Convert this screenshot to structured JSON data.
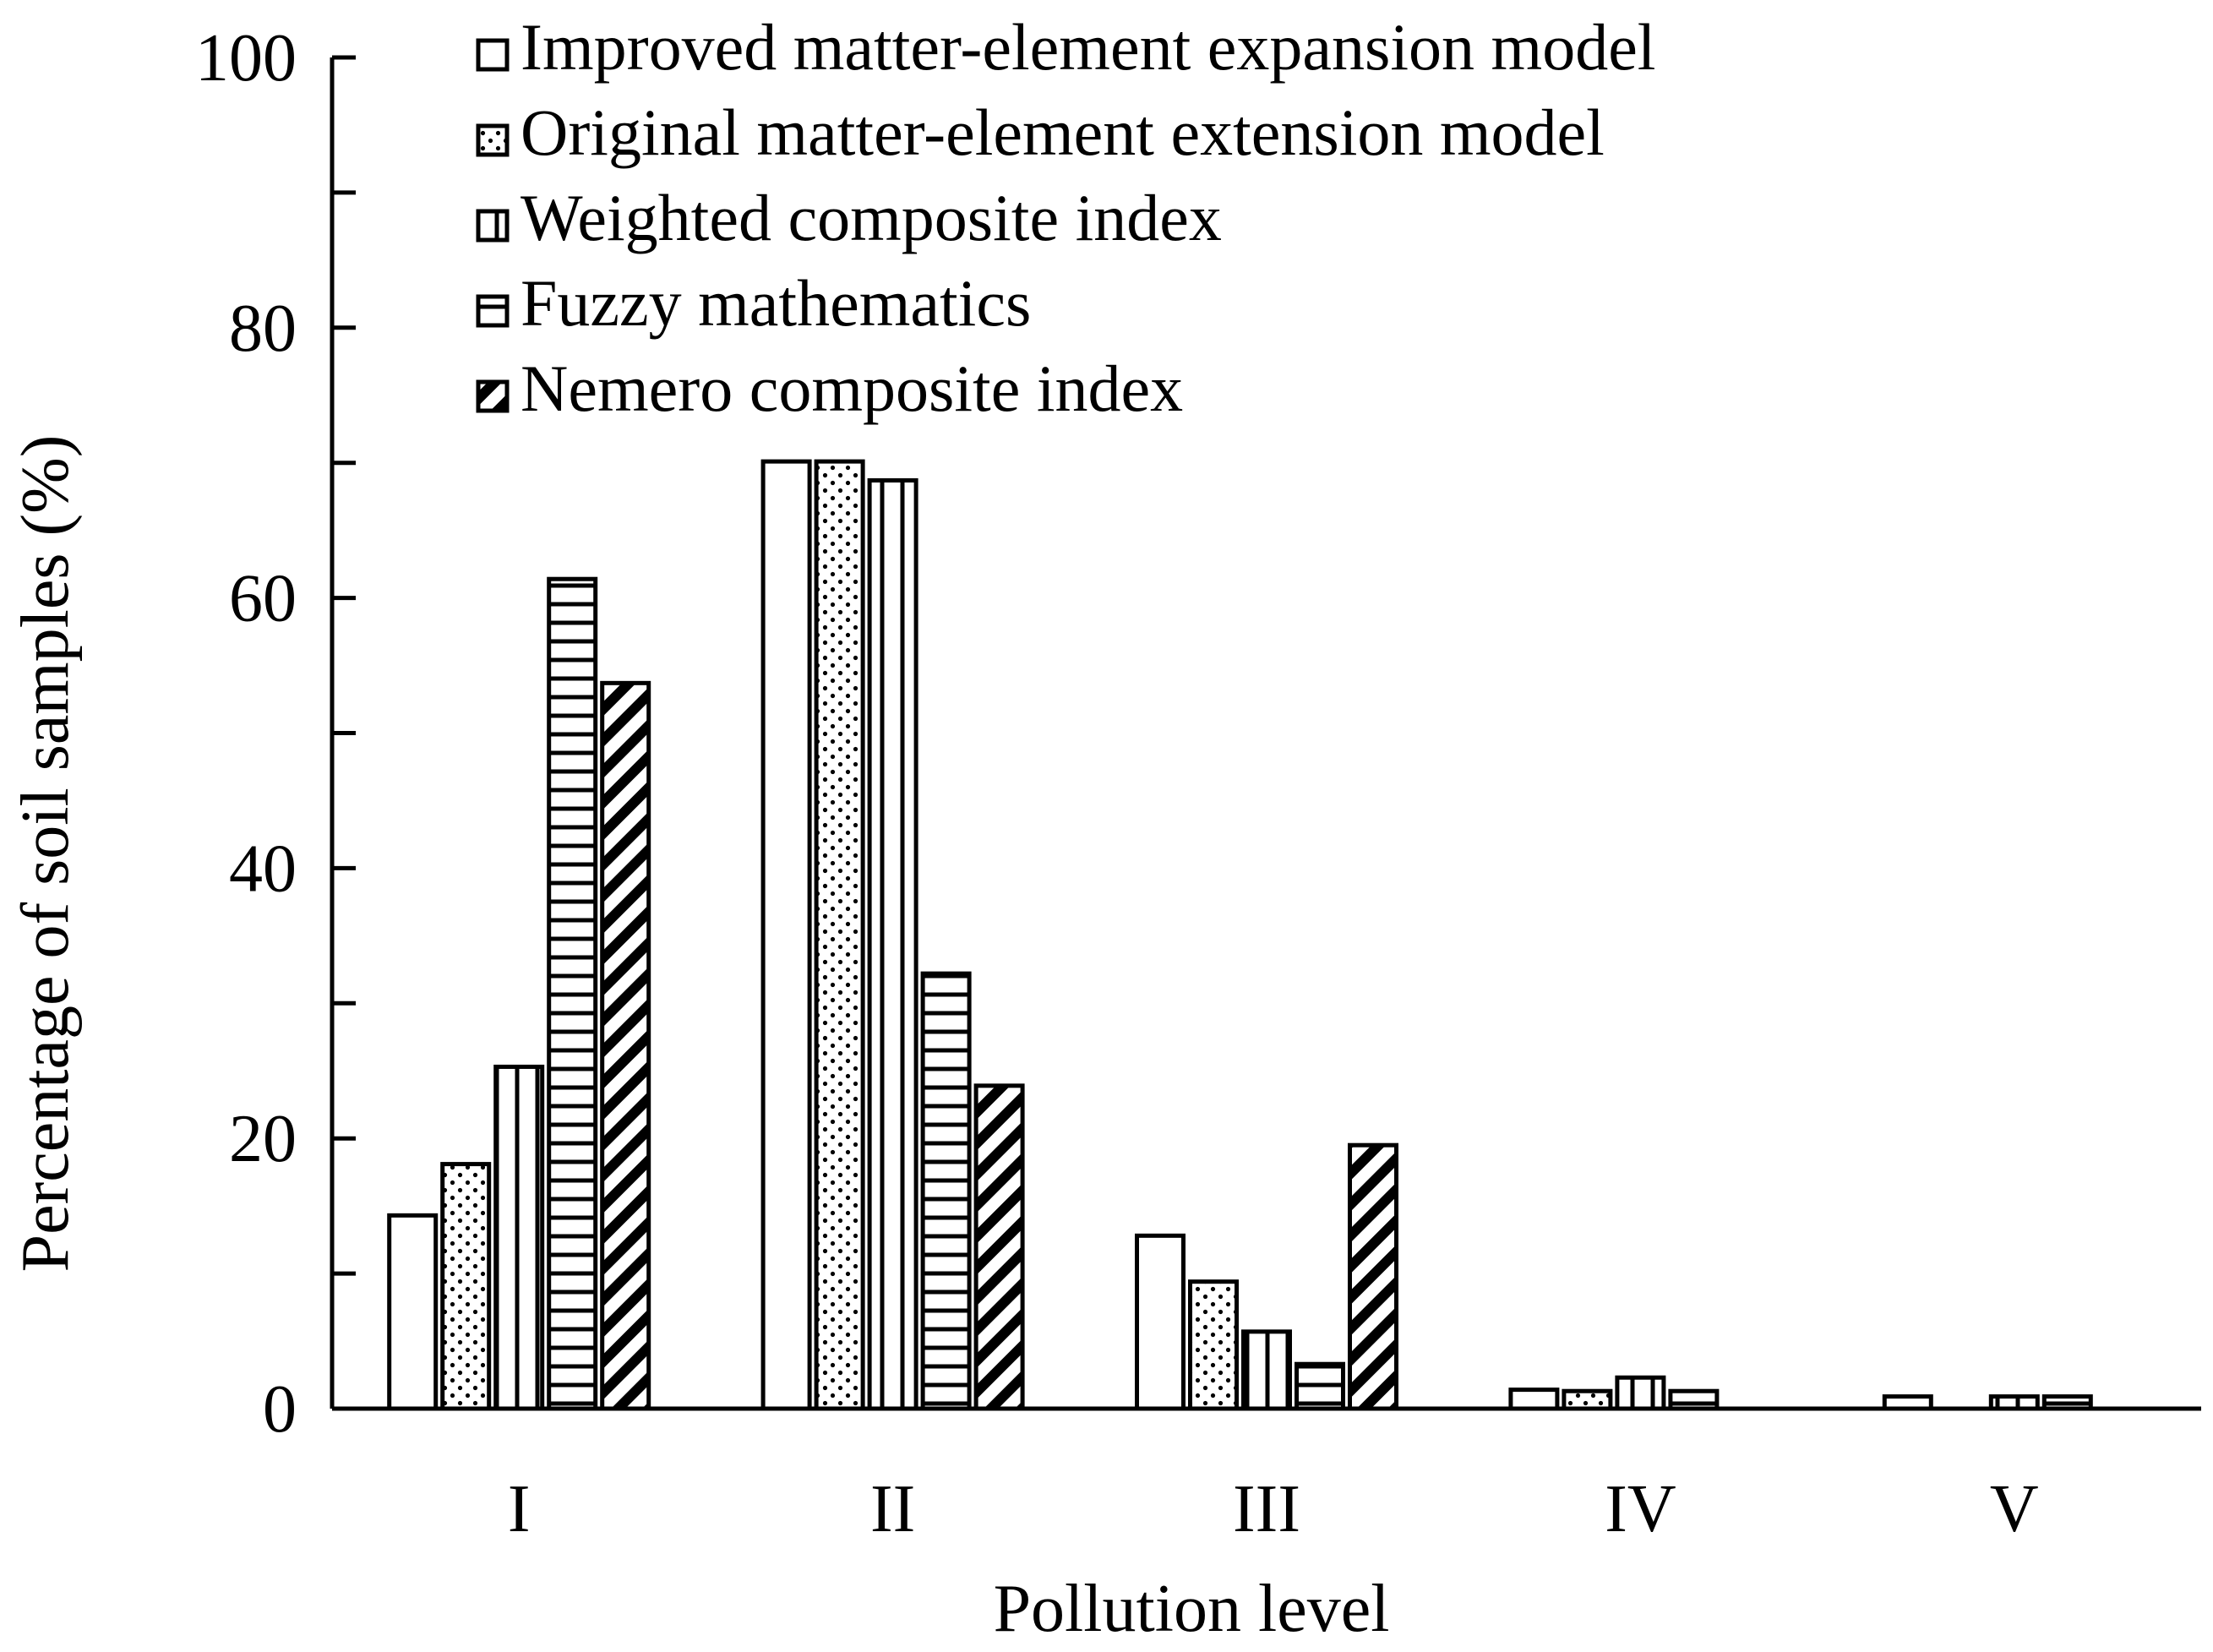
{
  "chart_data": {
    "type": "bar",
    "xlabel": "Pollution level",
    "ylabel": "Percentage of soil samples (%)",
    "ylim": [
      0,
      100
    ],
    "yticks_major": [
      0,
      20,
      40,
      60,
      80,
      100
    ],
    "yticks_minor_step": 10,
    "grid": false,
    "legend_position": "top-left",
    "categories": [
      "I",
      "II",
      "III",
      "IV",
      "V"
    ],
    "series": [
      {
        "name": "Improved matter-element expansion model",
        "pattern": "plain",
        "values": [
          14.3,
          70.1,
          12.8,
          1.4,
          0.9
        ]
      },
      {
        "name": "Original matter-element extension model",
        "pattern": "dots",
        "values": [
          18.1,
          70.1,
          9.4,
          1.3,
          0
        ]
      },
      {
        "name": "Weighted composite index",
        "pattern": "vertical-lines",
        "values": [
          25.3,
          68.7,
          5.7,
          2.3,
          0.9
        ]
      },
      {
        "name": "Fuzzy mathematics",
        "pattern": "horizontal-lines",
        "values": [
          61.4,
          32.2,
          3.3,
          1.3,
          0.9
        ]
      },
      {
        "name": "Nemero composite index",
        "pattern": "diagonal-lines",
        "values": [
          53.7,
          23.9,
          19.5,
          0,
          0
        ]
      }
    ]
  }
}
